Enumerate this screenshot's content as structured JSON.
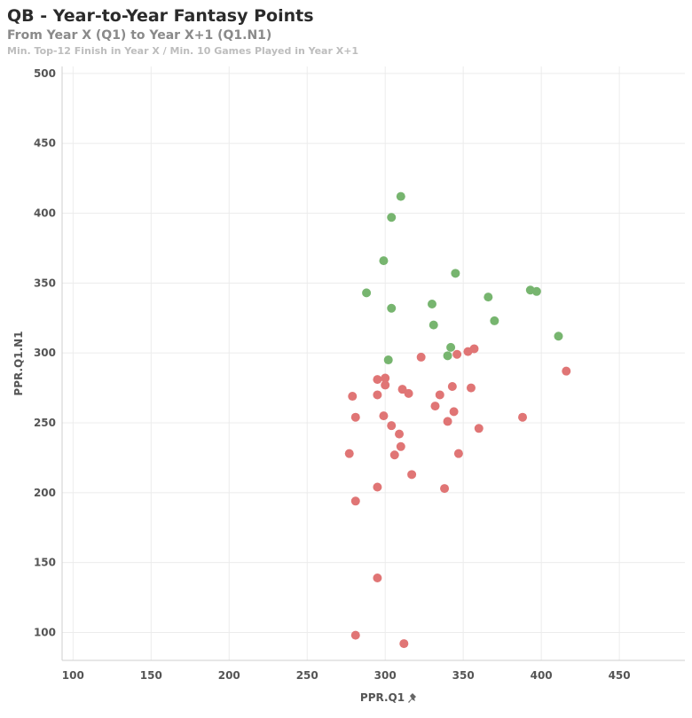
{
  "header": {
    "title": "QB - Year-to-Year Fantasy Points",
    "subtitle": "From Year X (Q1) to Year X+1 (Q1.N1)",
    "note": "Min. Top-12 Finish in Year X / Min. 10 Games Played in Year X+1"
  },
  "icons": {
    "pin": "pin-icon"
  },
  "colors": {
    "increase": "#77b56f",
    "decrease": "#e07575",
    "grid": "#ececec"
  },
  "chart_data": {
    "type": "scatter",
    "xlabel": "PPR.Q1",
    "ylabel": "PPR.Q1.N1",
    "xlim": [
      93,
      492
    ],
    "ylim": [
      80,
      505
    ],
    "xticks": [
      100,
      150,
      200,
      250,
      300,
      350,
      400,
      450
    ],
    "yticks": [
      100,
      150,
      200,
      250,
      300,
      350,
      400,
      450,
      500
    ],
    "grid": true,
    "series": [
      {
        "color": "#77b56f",
        "points": [
          [
            310,
            412
          ],
          [
            304,
            397
          ],
          [
            299,
            366
          ],
          [
            345,
            357
          ],
          [
            288,
            343
          ],
          [
            393,
            345
          ],
          [
            397,
            344
          ],
          [
            366,
            340
          ],
          [
            330,
            335
          ],
          [
            304,
            332
          ],
          [
            370,
            323
          ],
          [
            331,
            320
          ],
          [
            411,
            312
          ],
          [
            342,
            304
          ],
          [
            340,
            298
          ],
          [
            302,
            295
          ]
        ]
      },
      {
        "color": "#e07575",
        "points": [
          [
            357,
            303
          ],
          [
            353,
            301
          ],
          [
            346,
            299
          ],
          [
            323,
            297
          ],
          [
            416,
            287
          ],
          [
            295,
            281
          ],
          [
            300,
            282
          ],
          [
            300,
            277
          ],
          [
            343,
            276
          ],
          [
            355,
            275
          ],
          [
            311,
            274
          ],
          [
            315,
            271
          ],
          [
            335,
            270
          ],
          [
            295,
            270
          ],
          [
            279,
            269
          ],
          [
            332,
            262
          ],
          [
            344,
            258
          ],
          [
            281,
            254
          ],
          [
            299,
            255
          ],
          [
            388,
            254
          ],
          [
            340,
            251
          ],
          [
            304,
            248
          ],
          [
            360,
            246
          ],
          [
            309,
            242
          ],
          [
            310,
            233
          ],
          [
            277,
            228
          ],
          [
            306,
            227
          ],
          [
            347,
            228
          ],
          [
            317,
            213
          ],
          [
            295,
            204
          ],
          [
            338,
            203
          ],
          [
            281,
            194
          ],
          [
            295,
            139
          ],
          [
            281,
            98
          ],
          [
            312,
            92
          ]
        ]
      }
    ]
  }
}
